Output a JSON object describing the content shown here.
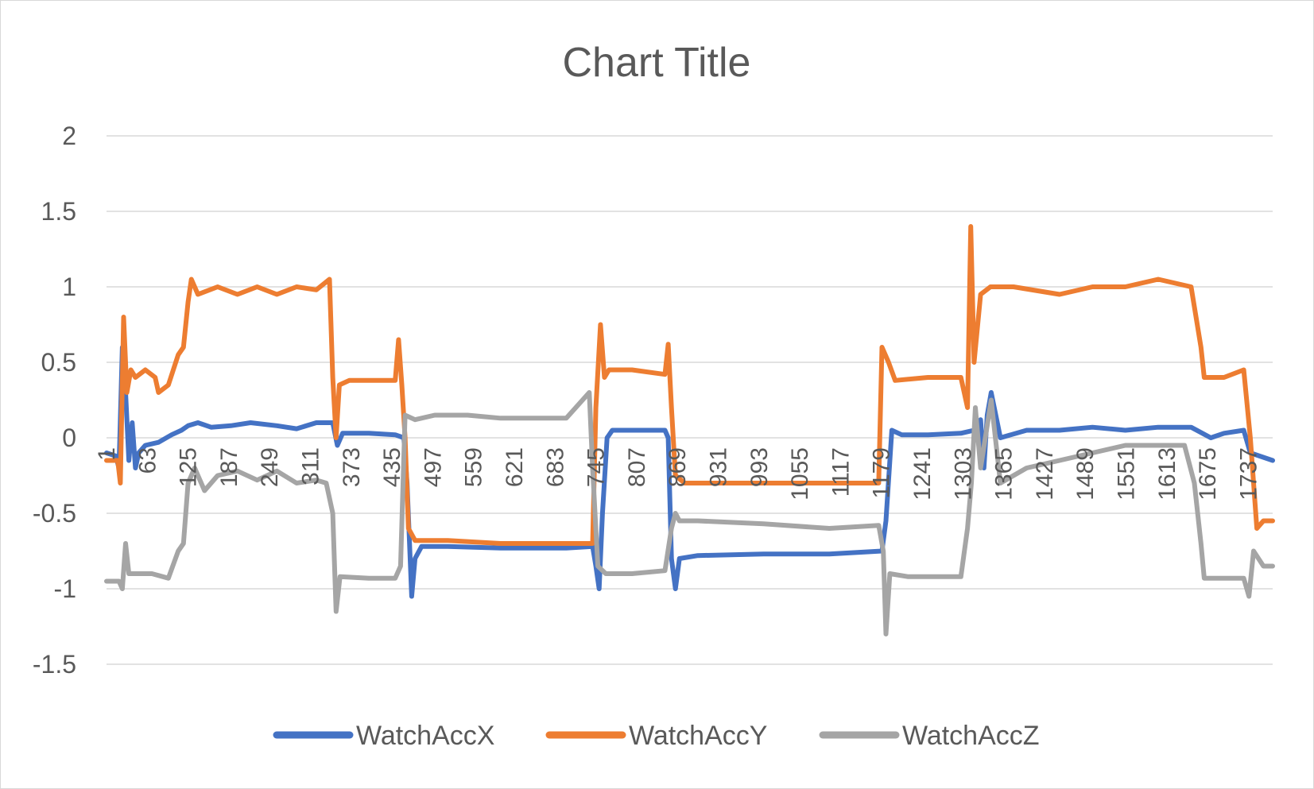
{
  "colors": {
    "WatchAccX": "#4472c4",
    "WatchAccY": "#ed7d31",
    "WatchAccZ": "#a5a5a5"
  },
  "chart_data": {
    "type": "line",
    "title": "Chart Title",
    "xlabel": "",
    "ylabel": "",
    "ylim": [
      -1.5,
      2
    ],
    "yticks": [
      "2",
      "1.5",
      "1",
      "0.5",
      "0",
      "-0.5",
      "-1",
      "-1.5"
    ],
    "xlim": [
      1,
      1774
    ],
    "xticks": [
      "1",
      "63",
      "125",
      "187",
      "249",
      "311",
      "373",
      "435",
      "497",
      "559",
      "621",
      "683",
      "745",
      "807",
      "869",
      "931",
      "993",
      "1055",
      "1117",
      "1179",
      "1241",
      "1303",
      "1365",
      "1427",
      "1489",
      "1551",
      "1613",
      "1675",
      "1737"
    ],
    "grid": true,
    "legend": "bottom",
    "series": [
      {
        "name": "WatchAccX",
        "points": [
          [
            1,
            -0.1
          ],
          [
            15,
            -0.12
          ],
          [
            20,
            -0.2
          ],
          [
            25,
            0.6
          ],
          [
            30,
            0.3
          ],
          [
            35,
            -0.15
          ],
          [
            40,
            0.1
          ],
          [
            45,
            -0.2
          ],
          [
            50,
            -0.1
          ],
          [
            60,
            -0.05
          ],
          [
            80,
            -0.03
          ],
          [
            100,
            0.02
          ],
          [
            115,
            0.05
          ],
          [
            125,
            0.08
          ],
          [
            140,
            0.1
          ],
          [
            160,
            0.07
          ],
          [
            190,
            0.08
          ],
          [
            220,
            0.1
          ],
          [
            260,
            0.08
          ],
          [
            290,
            0.06
          ],
          [
            320,
            0.1
          ],
          [
            345,
            0.1
          ],
          [
            352,
            -0.05
          ],
          [
            360,
            0.03
          ],
          [
            400,
            0.03
          ],
          [
            440,
            0.02
          ],
          [
            453,
            0.0
          ],
          [
            458,
            -0.3
          ],
          [
            465,
            -1.05
          ],
          [
            470,
            -0.8
          ],
          [
            480,
            -0.72
          ],
          [
            520,
            -0.72
          ],
          [
            600,
            -0.73
          ],
          [
            700,
            -0.73
          ],
          [
            740,
            -0.72
          ],
          [
            745,
            -0.85
          ],
          [
            750,
            -1.0
          ],
          [
            755,
            -0.5
          ],
          [
            762,
            0.0
          ],
          [
            770,
            0.05
          ],
          [
            800,
            0.05
          ],
          [
            850,
            0.05
          ],
          [
            855,
            0.0
          ],
          [
            860,
            -0.8
          ],
          [
            866,
            -1.0
          ],
          [
            872,
            -0.8
          ],
          [
            900,
            -0.78
          ],
          [
            1000,
            -0.77
          ],
          [
            1100,
            -0.77
          ],
          [
            1180,
            -0.75
          ],
          [
            1186,
            -0.55
          ],
          [
            1195,
            0.05
          ],
          [
            1210,
            0.02
          ],
          [
            1250,
            0.02
          ],
          [
            1300,
            0.03
          ],
          [
            1320,
            0.05
          ],
          [
            1330,
            0.12
          ],
          [
            1335,
            -0.2
          ],
          [
            1340,
            0.15
          ],
          [
            1346,
            0.3
          ],
          [
            1360,
            0.0
          ],
          [
            1400,
            0.05
          ],
          [
            1450,
            0.05
          ],
          [
            1500,
            0.07
          ],
          [
            1550,
            0.05
          ],
          [
            1600,
            0.07
          ],
          [
            1650,
            0.07
          ],
          [
            1680,
            0.0
          ],
          [
            1700,
            0.03
          ],
          [
            1730,
            0.05
          ],
          [
            1740,
            -0.1
          ],
          [
            1774,
            -0.15
          ]
        ]
      },
      {
        "name": "WatchAccY",
        "points": [
          [
            1,
            -0.15
          ],
          [
            18,
            -0.15
          ],
          [
            22,
            -0.3
          ],
          [
            27,
            0.8
          ],
          [
            32,
            0.3
          ],
          [
            38,
            0.45
          ],
          [
            45,
            0.4
          ],
          [
            60,
            0.45
          ],
          [
            75,
            0.4
          ],
          [
            80,
            0.3
          ],
          [
            95,
            0.35
          ],
          [
            110,
            0.55
          ],
          [
            118,
            0.6
          ],
          [
            125,
            0.9
          ],
          [
            130,
            1.05
          ],
          [
            140,
            0.95
          ],
          [
            170,
            1.0
          ],
          [
            200,
            0.95
          ],
          [
            230,
            1.0
          ],
          [
            260,
            0.95
          ],
          [
            290,
            1.0
          ],
          [
            320,
            0.98
          ],
          [
            340,
            1.05
          ],
          [
            345,
            0.4
          ],
          [
            350,
            0.0
          ],
          [
            355,
            0.35
          ],
          [
            370,
            0.38
          ],
          [
            400,
            0.38
          ],
          [
            440,
            0.38
          ],
          [
            445,
            0.65
          ],
          [
            450,
            0.35
          ],
          [
            455,
            0.0
          ],
          [
            460,
            -0.6
          ],
          [
            470,
            -0.68
          ],
          [
            520,
            -0.68
          ],
          [
            600,
            -0.7
          ],
          [
            700,
            -0.7
          ],
          [
            740,
            -0.7
          ],
          [
            745,
            0.2
          ],
          [
            752,
            0.75
          ],
          [
            758,
            0.4
          ],
          [
            765,
            0.45
          ],
          [
            800,
            0.45
          ],
          [
            850,
            0.42
          ],
          [
            855,
            0.62
          ],
          [
            860,
            0.2
          ],
          [
            866,
            -0.25
          ],
          [
            880,
            -0.3
          ],
          [
            950,
            -0.3
          ],
          [
            1050,
            -0.3
          ],
          [
            1150,
            -0.3
          ],
          [
            1175,
            -0.3
          ],
          [
            1180,
            0.6
          ],
          [
            1190,
            0.5
          ],
          [
            1200,
            0.38
          ],
          [
            1250,
            0.4
          ],
          [
            1300,
            0.4
          ],
          [
            1310,
            0.2
          ],
          [
            1315,
            1.4
          ],
          [
            1320,
            0.5
          ],
          [
            1330,
            0.95
          ],
          [
            1345,
            1.0
          ],
          [
            1380,
            1.0
          ],
          [
            1450,
            0.95
          ],
          [
            1500,
            1.0
          ],
          [
            1550,
            1.0
          ],
          [
            1600,
            1.05
          ],
          [
            1650,
            1.0
          ],
          [
            1665,
            0.6
          ],
          [
            1670,
            0.4
          ],
          [
            1700,
            0.4
          ],
          [
            1730,
            0.45
          ],
          [
            1740,
            0.0
          ],
          [
            1750,
            -0.6
          ],
          [
            1760,
            -0.55
          ],
          [
            1774,
            -0.55
          ]
        ]
      },
      {
        "name": "WatchAccZ",
        "points": [
          [
            1,
            -0.95
          ],
          [
            20,
            -0.95
          ],
          [
            25,
            -1.0
          ],
          [
            30,
            -0.7
          ],
          [
            35,
            -0.9
          ],
          [
            45,
            -0.9
          ],
          [
            70,
            -0.9
          ],
          [
            95,
            -0.93
          ],
          [
            110,
            -0.75
          ],
          [
            118,
            -0.7
          ],
          [
            125,
            -0.3
          ],
          [
            135,
            -0.2
          ],
          [
            150,
            -0.35
          ],
          [
            170,
            -0.25
          ],
          [
            200,
            -0.22
          ],
          [
            230,
            -0.28
          ],
          [
            260,
            -0.22
          ],
          [
            290,
            -0.3
          ],
          [
            320,
            -0.28
          ],
          [
            335,
            -0.3
          ],
          [
            345,
            -0.5
          ],
          [
            350,
            -1.15
          ],
          [
            356,
            -0.92
          ],
          [
            400,
            -0.93
          ],
          [
            440,
            -0.93
          ],
          [
            448,
            -0.85
          ],
          [
            455,
            0.15
          ],
          [
            470,
            0.12
          ],
          [
            500,
            0.15
          ],
          [
            550,
            0.15
          ],
          [
            600,
            0.13
          ],
          [
            650,
            0.13
          ],
          [
            700,
            0.13
          ],
          [
            735,
            0.3
          ],
          [
            740,
            -0.2
          ],
          [
            748,
            -0.85
          ],
          [
            760,
            -0.9
          ],
          [
            800,
            -0.9
          ],
          [
            850,
            -0.88
          ],
          [
            860,
            -0.6
          ],
          [
            866,
            -0.5
          ],
          [
            872,
            -0.55
          ],
          [
            900,
            -0.55
          ],
          [
            1000,
            -0.57
          ],
          [
            1100,
            -0.6
          ],
          [
            1175,
            -0.58
          ],
          [
            1182,
            -0.75
          ],
          [
            1186,
            -1.3
          ],
          [
            1192,
            -0.9
          ],
          [
            1220,
            -0.92
          ],
          [
            1270,
            -0.92
          ],
          [
            1300,
            -0.92
          ],
          [
            1310,
            -0.6
          ],
          [
            1316,
            -0.3
          ],
          [
            1322,
            0.2
          ],
          [
            1330,
            -0.2
          ],
          [
            1346,
            0.25
          ],
          [
            1360,
            -0.3
          ],
          [
            1400,
            -0.2
          ],
          [
            1450,
            -0.15
          ],
          [
            1500,
            -0.1
          ],
          [
            1550,
            -0.05
          ],
          [
            1600,
            -0.05
          ],
          [
            1640,
            -0.05
          ],
          [
            1655,
            -0.3
          ],
          [
            1665,
            -0.7
          ],
          [
            1670,
            -0.93
          ],
          [
            1700,
            -0.93
          ],
          [
            1730,
            -0.93
          ],
          [
            1738,
            -1.05
          ],
          [
            1745,
            -0.75
          ],
          [
            1760,
            -0.85
          ],
          [
            1774,
            -0.85
          ]
        ]
      }
    ]
  }
}
